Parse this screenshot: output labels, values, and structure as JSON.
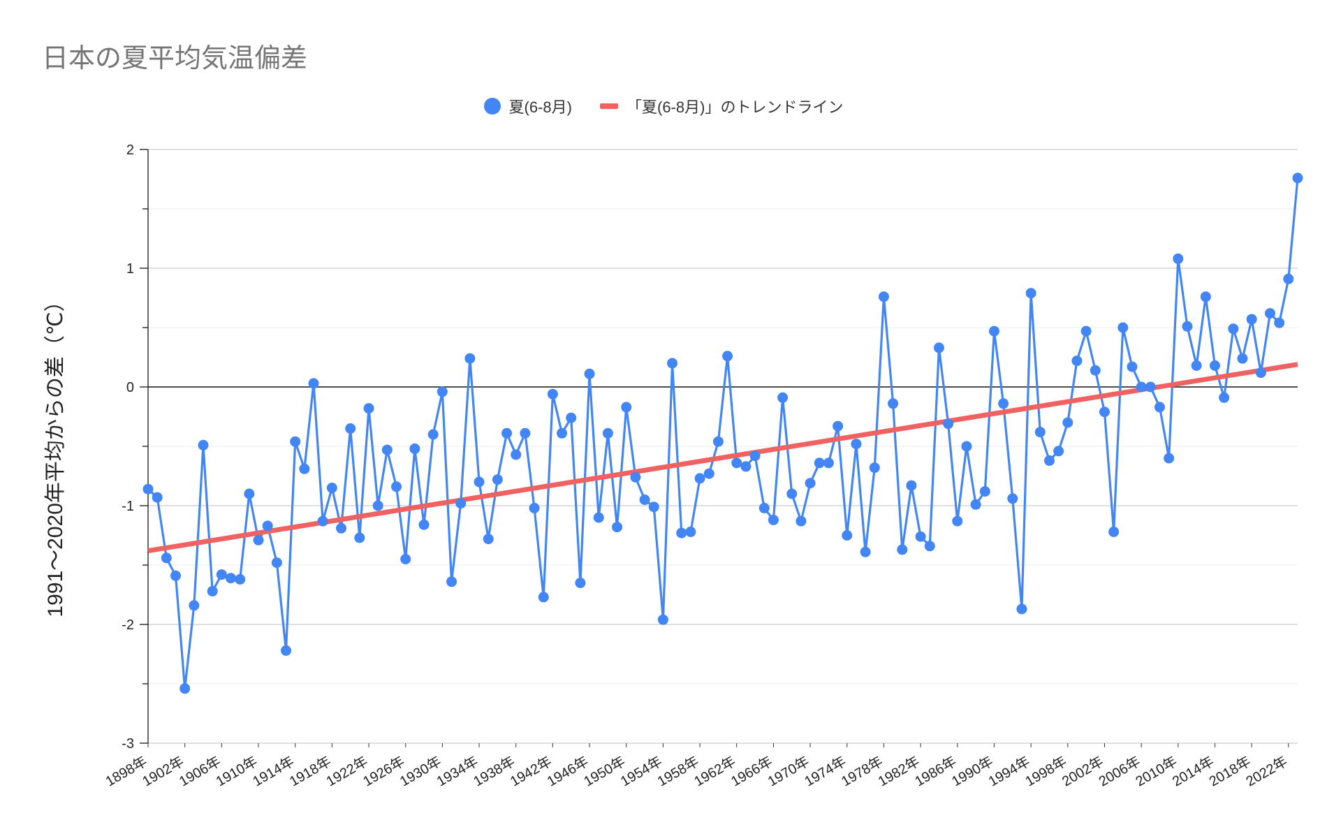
{
  "chart_data": {
    "type": "line",
    "title": "日本の夏平均気温偏差",
    "ylabel": "1991〜2020年平均からの差（℃）",
    "xlabel": "",
    "ylim": [
      -3,
      2
    ],
    "y_ticks": [
      "2",
      "1",
      "0",
      "-1",
      "-2",
      "-3"
    ],
    "x_start_year": 1898,
    "x_end_year": 2023,
    "x_tick_labels": [
      "1898年",
      "1902年",
      "1906年",
      "1910年",
      "1914年",
      "1918年",
      "1922年",
      "1926年",
      "1930年",
      "1934年",
      "1938年",
      "1942年",
      "1946年",
      "1950年",
      "1954年",
      "1958年",
      "1962年",
      "1966年",
      "1970年",
      "1974年",
      "1978年",
      "1982年",
      "1986年",
      "1990年",
      "1994年",
      "1998年",
      "2002年",
      "2006年",
      "2010年",
      "2014年",
      "2018年",
      "2022年"
    ],
    "legend": [
      "夏(6-8月)",
      "「夏(6-8月)」のトレンドライン"
    ],
    "legend_position": "top",
    "grid": true,
    "colors": {
      "series": "#4285f4",
      "trend": "#f06262"
    },
    "series": [
      {
        "values": [
          -0.86,
          -0.93,
          -1.44,
          -1.59,
          -2.54,
          -1.84,
          -0.49,
          -1.72,
          -1.58,
          -1.61,
          -1.62,
          -0.9,
          -1.29,
          -1.17,
          -1.48,
          -2.22,
          -0.46,
          -0.69,
          0.03,
          -1.13,
          -0.85,
          -1.19,
          -0.35,
          -1.27,
          -0.18,
          -1.0,
          -0.53,
          -0.84,
          -1.45,
          -0.52,
          -1.16,
          -0.4,
          -0.04,
          -1.64,
          -0.98,
          0.24,
          -0.8,
          -1.28,
          -0.78,
          -0.39,
          -0.57,
          -0.39,
          -1.02,
          -1.77,
          -0.06,
          -0.39,
          -0.26,
          -1.65,
          0.11,
          -1.1,
          -0.39,
          -1.18,
          -0.17,
          -0.76,
          -0.95,
          -1.01,
          -1.96,
          0.2,
          -1.23,
          -1.22,
          -0.77,
          -0.73,
          -0.46,
          0.26,
          -0.64,
          -0.67,
          -0.58,
          -1.02,
          -1.12,
          -0.09,
          -0.9,
          -1.13,
          -0.81,
          -0.64,
          -0.64,
          -0.33,
          -1.25,
          -0.48,
          -1.39,
          -0.68,
          0.76,
          -0.14,
          -1.37,
          -0.83,
          -1.26,
          -1.34,
          0.33,
          -0.31,
          -1.13,
          -0.5,
          -0.99,
          -0.88,
          0.47,
          -0.14,
          -0.94,
          -1.87,
          0.79,
          -0.38,
          -0.62,
          -0.54,
          -0.3,
          0.22,
          0.47,
          0.14,
          -0.21,
          -1.22,
          0.5,
          0.17,
          0.0,
          0.0,
          -0.17,
          -0.6,
          1.08,
          0.51,
          0.18,
          0.76,
          0.18,
          -0.09,
          0.49,
          0.24,
          0.57,
          0.12,
          0.62,
          0.54,
          0.91,
          1.76
        ]
      }
    ],
    "trendline": {
      "start": {
        "x": 1898,
        "y": -1.38
      },
      "end": {
        "x": 2023,
        "y": 0.19
      }
    }
  }
}
